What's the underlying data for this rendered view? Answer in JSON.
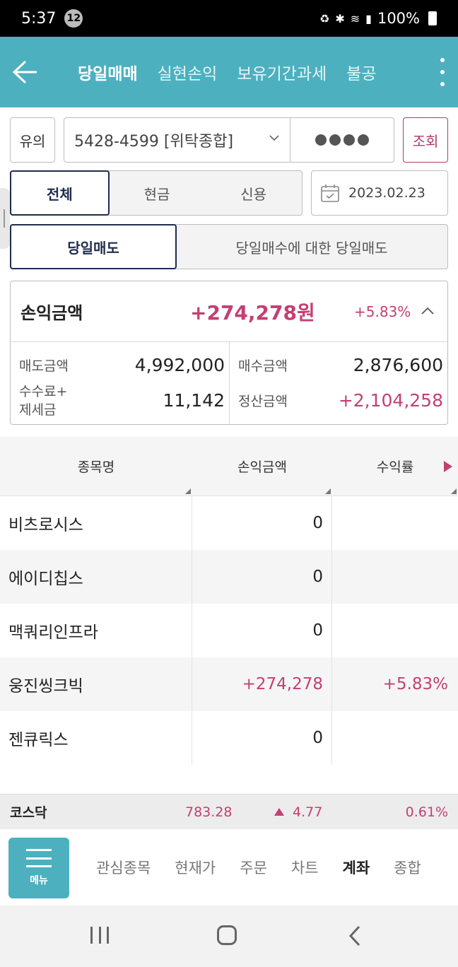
{
  "status_bar": {
    "time": "5:37",
    "notification_count": "12",
    "battery": "100%"
  },
  "header": {
    "tabs": [
      {
        "label": "당일매매",
        "active": true
      },
      {
        "label": "실현손익",
        "active": false
      },
      {
        "label": "보유기간과세",
        "active": false
      },
      {
        "label": "불공",
        "active": false
      }
    ]
  },
  "account": {
    "caution_label": "유의",
    "account_number": "5428-4599 [위탁종합]",
    "query_label": "조회"
  },
  "filter": {
    "types": [
      "전체",
      "현금",
      "신용"
    ],
    "date": "2023.02.23"
  },
  "sell_type": {
    "options": [
      "당일매도",
      "당일매수에 대한 당일매도"
    ]
  },
  "summary": {
    "label": "손익금액",
    "amount": "+274,278원",
    "rate": "+5.83%",
    "sell_label": "매도금액",
    "sell_amount": "4,992,000",
    "buy_label": "매수금액",
    "buy_amount": "2,876,600",
    "fee_label_1": "수수료+",
    "fee_label_2": "제세금",
    "fee_amount": "11,142",
    "settle_label": "정산금액",
    "settle_amount": "+2,104,258"
  },
  "table": {
    "headers": [
      "종목명",
      "손익금액",
      "수익률"
    ],
    "rows": [
      {
        "name": "비츠로시스",
        "pnl": "0",
        "rate": ""
      },
      {
        "name": "에이디칩스",
        "pnl": "0",
        "rate": ""
      },
      {
        "name": "맥쿼리인프라",
        "pnl": "0",
        "rate": ""
      },
      {
        "name": "웅진씽크빅",
        "pnl": "+274,278",
        "rate": "+5.83%"
      },
      {
        "name": "젠큐릭스",
        "pnl": "0",
        "rate": ""
      }
    ]
  },
  "market": {
    "name": "코스닥",
    "index": "783.28",
    "change": "4.77",
    "rate": "0.61%"
  },
  "bottom_nav": {
    "menu_label": "메뉴",
    "items": [
      {
        "label": "관심종목",
        "active": false
      },
      {
        "label": "현재가",
        "active": false
      },
      {
        "label": "주문",
        "active": false
      },
      {
        "label": "차트",
        "active": false
      },
      {
        "label": "계좌",
        "active": true
      },
      {
        "label": "종합",
        "active": false
      }
    ]
  },
  "colors": {
    "header": "#4db0bf",
    "positive": "#c43f73",
    "selected_border": "#1f2c4d"
  }
}
